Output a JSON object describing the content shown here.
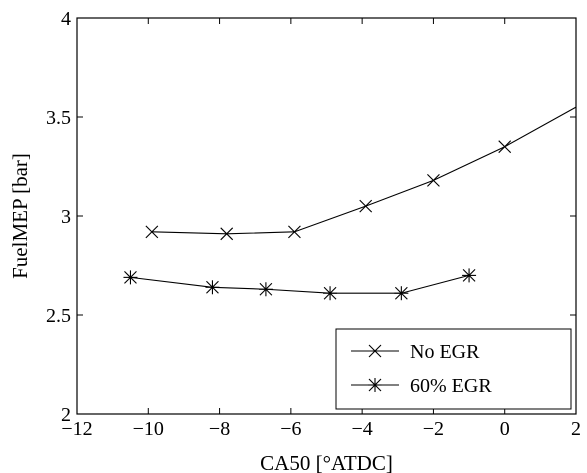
{
  "chart_data": {
    "type": "line",
    "title": "",
    "xlabel": "CA50 [°ATDC]",
    "ylabel": "FuelMEP [bar]",
    "xlim": [
      -12,
      2
    ],
    "ylim": [
      2,
      4
    ],
    "xticks": [
      -12,
      -10,
      -8,
      -6,
      -4,
      -2,
      0,
      2
    ],
    "yticks": [
      2,
      2.5,
      3,
      3.5,
      4
    ],
    "xtick_labels": [
      "−12",
      "−10",
      "−8",
      "−6",
      "−4",
      "−2",
      "0",
      "2"
    ],
    "ytick_labels": [
      "2",
      "2.5",
      "3",
      "3.5",
      "4"
    ],
    "grid": false,
    "legend_position": "bottom-right",
    "series": [
      {
        "name": "No EGR",
        "marker": "x",
        "color": "#000000",
        "x": [
          -9.9,
          -7.8,
          -5.9,
          -3.9,
          -2.0,
          0.0,
          2.0
        ],
        "y": [
          2.92,
          2.91,
          2.92,
          3.05,
          3.18,
          3.35,
          3.55
        ],
        "marker_indices": [
          0,
          1,
          2,
          3,
          4,
          5
        ]
      },
      {
        "name": "60% EGR",
        "marker": "asterisk",
        "color": "#000000",
        "x": [
          -10.5,
          -8.2,
          -6.7,
          -4.9,
          -2.9,
          -1.0
        ],
        "y": [
          2.69,
          2.64,
          2.63,
          2.61,
          2.61,
          2.7
        ],
        "marker_indices": [
          0,
          1,
          2,
          3,
          4,
          5
        ]
      }
    ]
  }
}
